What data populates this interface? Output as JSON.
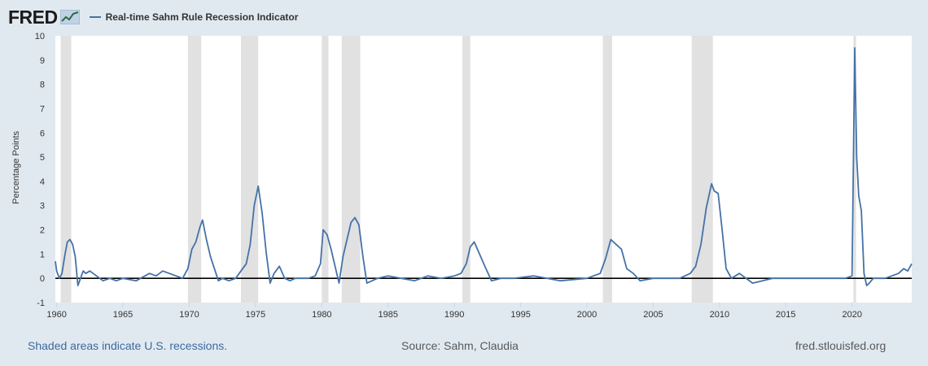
{
  "header": {
    "logo_text": "FRED",
    "series_title": "Real-time Sahm Rule Recession Indicator"
  },
  "footer": {
    "left": "Shaded areas indicate U.S. recessions.",
    "source": "Source: Sahm, Claudia",
    "site": "fred.stlouisfed.org"
  },
  "colors": {
    "line": "#4572a7",
    "recession": "#e1e1e1",
    "background": "#e1e9f0",
    "plot": "#ffffff"
  },
  "chart_data": {
    "type": "line",
    "title": "Real-time Sahm Rule Recession Indicator",
    "ylabel": "Percentage Points",
    "xlabel": "",
    "xlim": [
      1959.9,
      2024.5
    ],
    "ylim": [
      -1,
      10
    ],
    "xticks": [
      1960,
      1965,
      1970,
      1975,
      1980,
      1985,
      1990,
      1995,
      2000,
      2005,
      2010,
      2015,
      2020
    ],
    "yticks": [
      -1,
      0,
      1,
      2,
      3,
      4,
      5,
      6,
      7,
      8,
      9,
      10
    ],
    "recessions": [
      [
        1960.3,
        1961.1
      ],
      [
        1969.9,
        1970.9
      ],
      [
        1973.9,
        1975.2
      ],
      [
        1980.0,
        1980.5
      ],
      [
        1981.5,
        1982.9
      ],
      [
        1990.6,
        1991.2
      ],
      [
        2001.2,
        2001.9
      ],
      [
        2007.9,
        2009.5
      ],
      [
        2020.1,
        2020.3
      ]
    ],
    "series": [
      {
        "name": "Real-time Sahm Rule Recession Indicator",
        "x": [
          1959.9,
          1960.0,
          1960.2,
          1960.4,
          1960.6,
          1960.8,
          1961.0,
          1961.2,
          1961.4,
          1961.6,
          1961.8,
          1962.0,
          1962.2,
          1962.5,
          1963.0,
          1963.5,
          1964.0,
          1964.5,
          1965.0,
          1966.0,
          1967.0,
          1967.5,
          1968.0,
          1969.0,
          1969.5,
          1969.9,
          1970.2,
          1970.5,
          1970.8,
          1971.0,
          1971.3,
          1971.6,
          1971.9,
          1972.2,
          1972.5,
          1973.0,
          1973.5,
          1973.9,
          1974.3,
          1974.6,
          1974.9,
          1975.2,
          1975.5,
          1975.8,
          1976.1,
          1976.4,
          1976.8,
          1977.2,
          1977.6,
          1978.0,
          1979.0,
          1979.5,
          1979.9,
          1980.1,
          1980.4,
          1980.7,
          1981.0,
          1981.3,
          1981.6,
          1981.9,
          1982.2,
          1982.5,
          1982.8,
          1983.1,
          1983.4,
          1983.8,
          1984.2,
          1985.0,
          1986.0,
          1987.0,
          1988.0,
          1989.0,
          1990.0,
          1990.5,
          1990.9,
          1991.2,
          1991.5,
          1991.9,
          1992.3,
          1992.8,
          1993.5,
          1994.5,
          1996.0,
          1998.0,
          2000.0,
          2001.0,
          2001.4,
          2001.8,
          2002.2,
          2002.6,
          2003.0,
          2003.5,
          2004.0,
          2005.0,
          2006.0,
          2007.0,
          2007.8,
          2008.2,
          2008.6,
          2009.0,
          2009.4,
          2009.6,
          2009.9,
          2010.2,
          2010.5,
          2010.9,
          2011.5,
          2012.5,
          2014.0,
          2016.0,
          2018.0,
          2019.5,
          2020.0,
          2020.2,
          2020.35,
          2020.5,
          2020.7,
          2020.9,
          2021.1,
          2021.3,
          2021.6,
          2022.0,
          2022.5,
          2023.0,
          2023.5,
          2023.9,
          2024.2,
          2024.5
        ],
        "values": [
          0.7,
          0.3,
          0.0,
          0.2,
          0.9,
          1.5,
          1.6,
          1.4,
          0.9,
          -0.3,
          0.0,
          0.3,
          0.2,
          0.3,
          0.1,
          -0.1,
          0.0,
          -0.1,
          0.0,
          -0.1,
          0.2,
          0.1,
          0.3,
          0.1,
          0.0,
          0.4,
          1.2,
          1.5,
          2.1,
          2.4,
          1.6,
          0.9,
          0.4,
          -0.1,
          0.0,
          -0.1,
          0.0,
          0.3,
          0.6,
          1.4,
          3.0,
          3.8,
          2.7,
          1.1,
          -0.2,
          0.2,
          0.5,
          0.0,
          -0.1,
          0.0,
          0.0,
          0.1,
          0.6,
          2.0,
          1.8,
          1.2,
          0.5,
          -0.2,
          0.9,
          1.6,
          2.3,
          2.5,
          2.2,
          0.9,
          -0.2,
          -0.1,
          0.0,
          0.1,
          0.0,
          -0.1,
          0.1,
          0.0,
          0.1,
          0.2,
          0.6,
          1.3,
          1.5,
          1.0,
          0.5,
          -0.1,
          0.0,
          0.0,
          0.1,
          -0.1,
          0.0,
          0.2,
          0.8,
          1.6,
          1.4,
          1.2,
          0.4,
          0.2,
          -0.1,
          0.0,
          0.0,
          0.0,
          0.2,
          0.5,
          1.4,
          2.9,
          3.9,
          3.6,
          3.5,
          2.0,
          0.4,
          0.0,
          0.2,
          -0.2,
          0.0,
          0.0,
          0.0,
          0.0,
          0.1,
          9.5,
          5.0,
          3.4,
          2.8,
          0.2,
          -0.3,
          -0.2,
          0.0,
          0.0,
          0.0,
          0.1,
          0.2,
          0.4,
          0.3,
          0.6
        ]
      }
    ]
  }
}
